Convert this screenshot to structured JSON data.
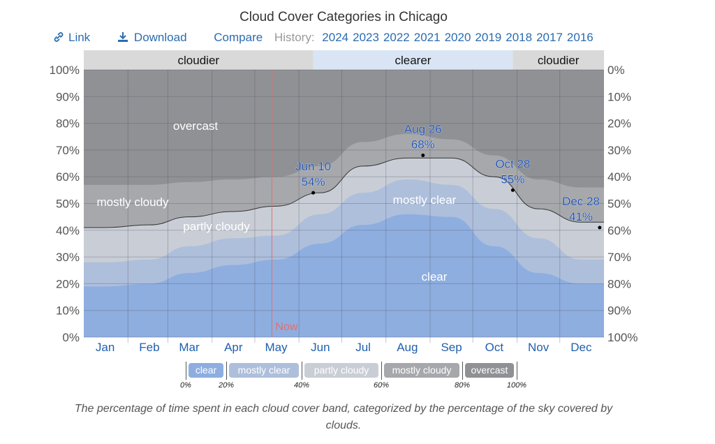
{
  "title": "Cloud Cover Categories in Chicago",
  "toolbar": {
    "link": "Link",
    "download": "Download",
    "compare": "Compare",
    "history_label": "History:",
    "years": [
      "2024",
      "2023",
      "2022",
      "2021",
      "2020",
      "2019",
      "2018",
      "2017",
      "2016"
    ],
    "icons": {
      "link": "link-icon",
      "download": "download-icon"
    }
  },
  "legend": {
    "items": [
      {
        "label": "clear",
        "color": "#8eaee0"
      },
      {
        "label": "mostly clear",
        "color": "#aebfdc"
      },
      {
        "label": "partly cloudy",
        "color": "#c9ced6"
      },
      {
        "label": "mostly cloudy",
        "color": "#a6a8ab"
      },
      {
        "label": "overcast",
        "color": "#8f9194"
      }
    ],
    "ticks": [
      "0%",
      "20%",
      "40%",
      "60%",
      "80%",
      "100%"
    ]
  },
  "caption": "The percentage of time spent in each cloud cover band, categorized by the percentage of the sky covered by clouds.",
  "chart_data": {
    "type": "area",
    "stacked": true,
    "title": "Cloud Cover Categories in Chicago",
    "categories": [
      "Jan",
      "Feb",
      "Mar",
      "Apr",
      "May",
      "Jun",
      "Jul",
      "Aug",
      "Sep",
      "Oct",
      "Nov",
      "Dec"
    ],
    "ylim": [
      0,
      100
    ],
    "yticks_left": [
      "0%",
      "10%",
      "20%",
      "30%",
      "40%",
      "50%",
      "60%",
      "70%",
      "80%",
      "90%",
      "100%"
    ],
    "yticks_right": [
      "100%",
      "90%",
      "80%",
      "70%",
      "60%",
      "50%",
      "40%",
      "30%",
      "20%",
      "10%",
      "0%"
    ],
    "grid": true,
    "series": [
      {
        "name": "clear",
        "color": "#8eaee0",
        "values": [
          19,
          20,
          24,
          27,
          29,
          35,
          42,
          46,
          45,
          34,
          24,
          20
        ]
      },
      {
        "name": "mostly clear",
        "color": "#aebfdc",
        "values": [
          9,
          9,
          10,
          10,
          9,
          11,
          12,
          13,
          12,
          14,
          13,
          9
        ]
      },
      {
        "name": "partly cloudy",
        "color": "#c9ced6",
        "values": [
          13,
          13,
          11,
          10,
          11,
          8,
          10,
          8,
          10,
          12,
          11,
          14
        ]
      },
      {
        "name": "mostly cloudy",
        "color": "#a6a8ab",
        "values": [
          16,
          15,
          13,
          12,
          11,
          10,
          9,
          9,
          7,
          8,
          11,
          13
        ]
      },
      {
        "name": "overcast",
        "color": "#8f9194",
        "values": [
          43,
          43,
          42,
          41,
          40,
          36,
          27,
          24,
          26,
          32,
          41,
          44
        ]
      }
    ],
    "series_labels": [
      "clear",
      "mostly clear",
      "partly cloudy",
      "mostly cloudy",
      "overcast"
    ],
    "annotations": [
      {
        "date": "Jun 10",
        "day": 161,
        "value": "54%",
        "y": 54
      },
      {
        "date": "Aug 26",
        "day": 238,
        "value": "68%",
        "y": 68
      },
      {
        "date": "Oct 28",
        "day": 301,
        "value": "55%",
        "y": 55
      },
      {
        "date": "Dec 28",
        "day": 362,
        "value": "41%",
        "y": 41
      }
    ],
    "now": {
      "label": "Now",
      "day": 132,
      "color": "#e07070"
    },
    "season_bands": [
      {
        "label": "cloudier",
        "from_day": 0,
        "to_day": 161,
        "color": "#d9d9d9"
      },
      {
        "label": "clearer",
        "from_day": 161,
        "to_day": 301,
        "color": "#d9e5f4"
      },
      {
        "label": "cloudier",
        "from_day": 301,
        "to_day": 365,
        "color": "#d9d9d9"
      }
    ]
  }
}
